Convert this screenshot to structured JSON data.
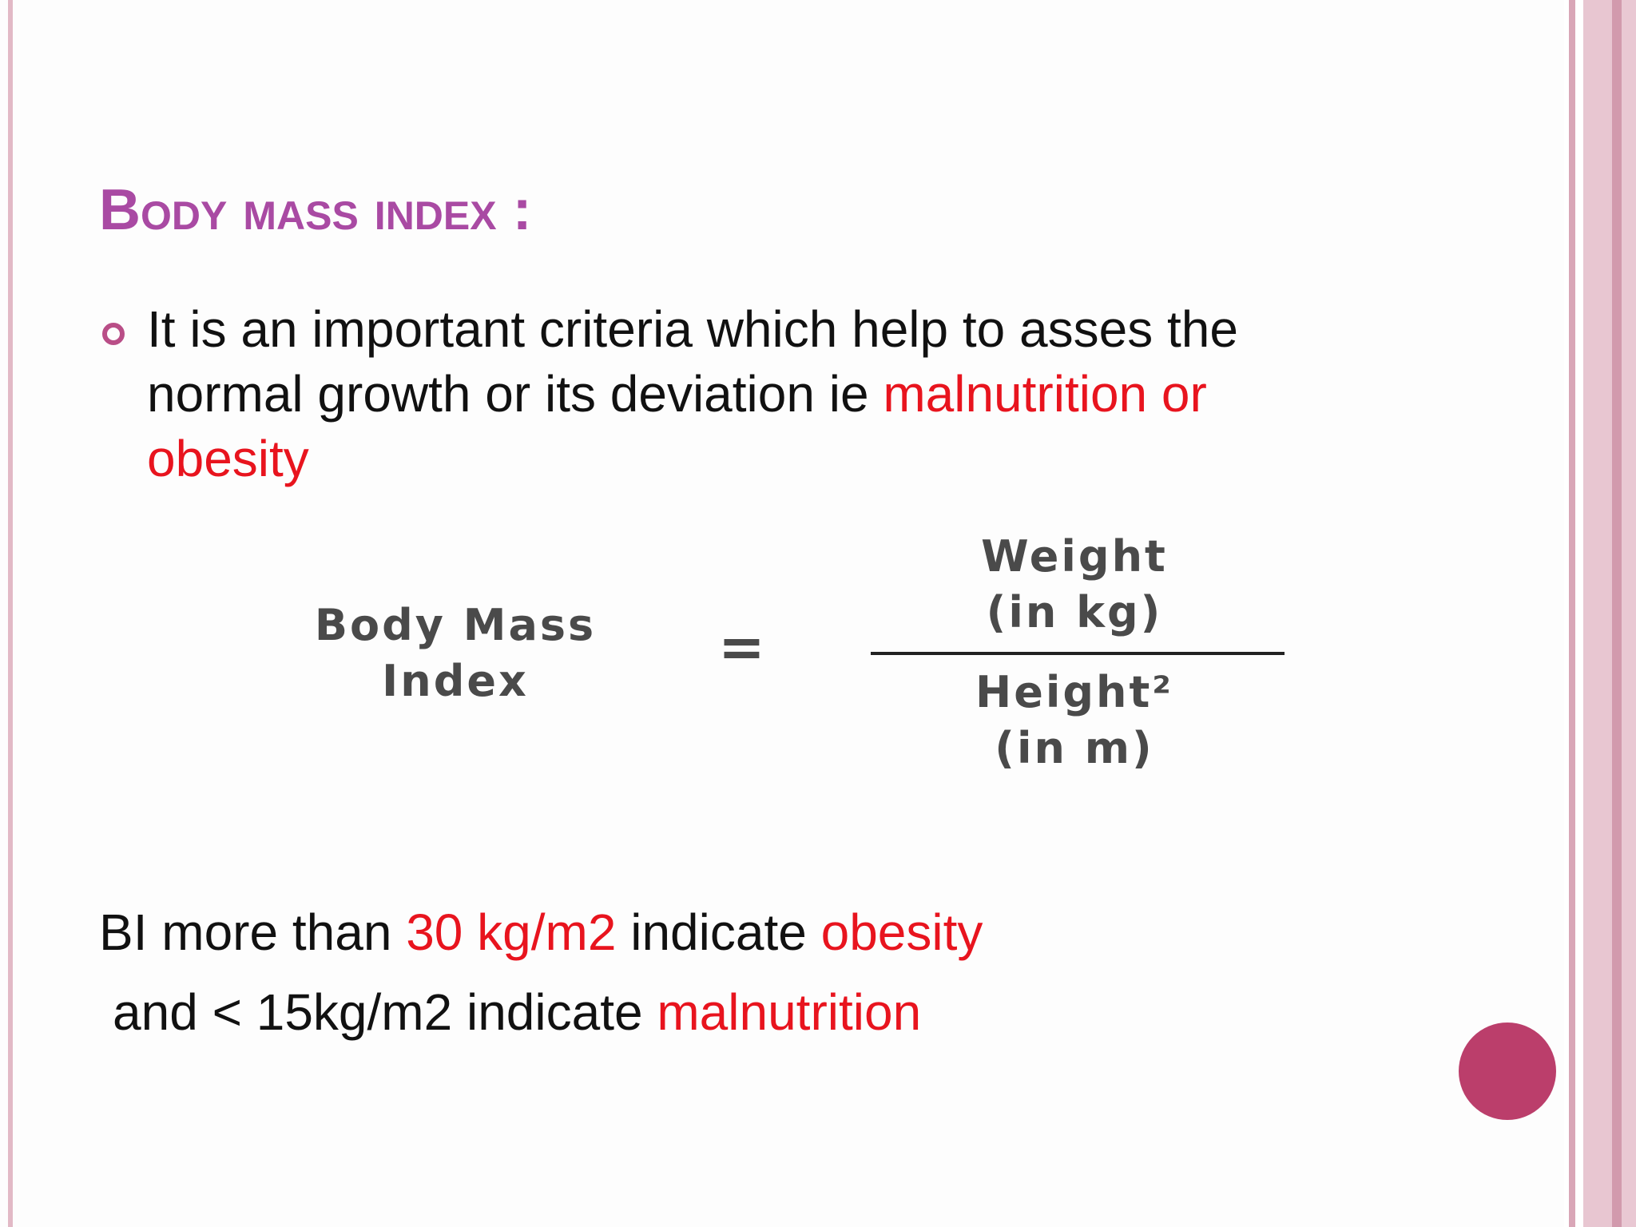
{
  "header": {
    "title": "Body mass index :"
  },
  "bullet": {
    "segments": [
      {
        "text": "It is an important criteria which help to asses the normal growth or its deviation ie ",
        "highlight": false
      },
      {
        "text": "malnutrition or obesity",
        "highlight": true
      }
    ]
  },
  "formula": {
    "left": [
      "Body Mass",
      "Index"
    ],
    "operator": "=",
    "numerator": [
      "Weight",
      "(in kg)"
    ],
    "denominator": [
      "Height²",
      "(in m)"
    ]
  },
  "notes": [
    [
      {
        "text": "BI more than ",
        "highlight": false
      },
      {
        "text": "30 kg/m2",
        "highlight": true
      },
      {
        "text": " indicate ",
        "highlight": false
      },
      {
        "text": "obesity",
        "highlight": true
      }
    ],
    [
      {
        "text": "and < 15kg/m2 indicate ",
        "highlight": false
      },
      {
        "text": "malnutrition",
        "highlight": true
      }
    ]
  ]
}
